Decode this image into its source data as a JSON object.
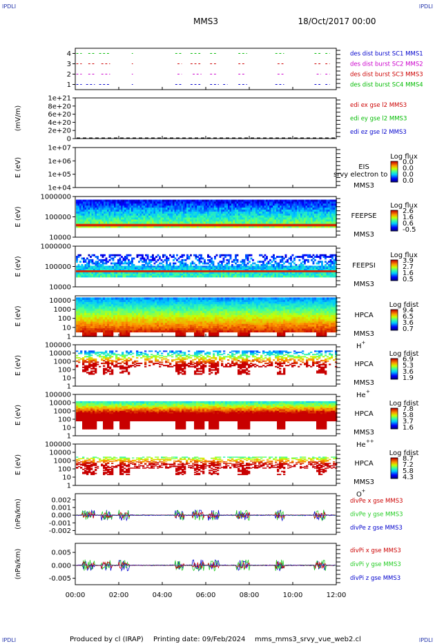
{
  "header": {
    "corner_labels": [
      "IPDLI",
      "IPDLI",
      "IPDLI",
      "IPDLI"
    ],
    "spacecraft": "MMS3",
    "date_time": "18/Oct/2017 00:00"
  },
  "footer": {
    "produced_by": "Produced by cl (IRAP)",
    "printing_date": "Printing date: 09/Feb/2024",
    "script_name": "mms_mms3_srvy_vue_web2.cl"
  },
  "colors": {
    "blue": "#0000cc",
    "magenta": "#cc00cc",
    "red": "#cc0000",
    "green": "#00bb00",
    "lightgreen": "#22cc22"
  },
  "chart_data": [
    {
      "type": "scatter",
      "id": "burst",
      "ylabel": "",
      "yticks": [
        "4",
        "3",
        "2",
        "1"
      ],
      "ylim": [
        0.5,
        4.5
      ],
      "legend": [
        {
          "text": "des dist burst SC1 MMS1",
          "color": "#0000cc"
        },
        {
          "text": "des dist burst SC2 MMS2",
          "color": "#cc00cc"
        },
        {
          "text": "des dist burst SC3 MMS3",
          "color": "#cc0000"
        },
        {
          "text": "des dist burst SC4 MMS4",
          "color": "#00bb00"
        }
      ],
      "series": [
        {
          "name": "des dist burst SC1 MMS1",
          "y": 1,
          "color": "#0000cc",
          "intervals": [
            [
              0.05,
              0.3
            ],
            [
              0.5,
              0.9
            ],
            [
              1.1,
              1.6
            ],
            [
              2.6,
              2.65
            ],
            [
              4.6,
              4.9
            ],
            [
              5.3,
              5.8
            ],
            [
              6.2,
              6.6
            ],
            [
              6.8,
              7.0
            ],
            [
              7.5,
              7.9
            ],
            [
              9.2,
              9.6
            ],
            [
              11.0,
              11.3
            ],
            [
              11.5,
              11.7
            ]
          ]
        },
        {
          "name": "des dist burst SC2 MMS2",
          "y": 2,
          "color": "#cc00cc",
          "intervals": [
            [
              0.05,
              0.3
            ],
            [
              0.6,
              0.9
            ],
            [
              1.2,
              1.6
            ],
            [
              2.6,
              2.65
            ],
            [
              4.7,
              4.9
            ],
            [
              5.4,
              5.8
            ],
            [
              6.2,
              6.5
            ],
            [
              7.5,
              7.8
            ],
            [
              9.3,
              9.6
            ],
            [
              11.1,
              11.3
            ],
            [
              11.5,
              11.7
            ]
          ]
        },
        {
          "name": "des dist burst SC3 MMS3",
          "y": 3,
          "color": "#cc0000",
          "intervals": [
            [
              0.05,
              0.3
            ],
            [
              0.6,
              0.9
            ],
            [
              1.2,
              1.6
            ],
            [
              2.6,
              2.65
            ],
            [
              4.7,
              4.9
            ],
            [
              5.3,
              5.8
            ],
            [
              6.2,
              6.5
            ],
            [
              7.5,
              7.8
            ],
            [
              9.3,
              9.6
            ],
            [
              11.0,
              11.3
            ],
            [
              11.5,
              11.7
            ]
          ]
        },
        {
          "name": "des dist burst SC4 MMS4",
          "y": 4,
          "color": "#00bb00",
          "intervals": [
            [
              0.05,
              0.3
            ],
            [
              0.6,
              0.9
            ],
            [
              1.1,
              1.6
            ],
            [
              2.6,
              2.65
            ],
            [
              4.6,
              4.9
            ],
            [
              5.3,
              5.8
            ],
            [
              6.2,
              6.5
            ],
            [
              7.5,
              7.9
            ],
            [
              9.2,
              9.6
            ],
            [
              11.0,
              11.3
            ],
            [
              11.5,
              11.7
            ]
          ]
        }
      ]
    },
    {
      "type": "line",
      "id": "edi",
      "ylabel": "(mV/m)",
      "yticks": [
        "1e+21",
        "8e+20",
        "6e+20",
        "4e+20",
        "2e+20",
        "0"
      ],
      "ylim": [
        0,
        1e+21
      ],
      "legend": [
        {
          "text": "edi ex gse l2 MMS3",
          "color": "#cc0000"
        },
        {
          "text": "edi ey gse l2 MMS3",
          "color": "#00bb00"
        },
        {
          "text": "edi ez gse l2 MMS3",
          "color": "#0000cc"
        }
      ],
      "series": [
        {
          "name": "edi ez gse l2 MMS3",
          "y": 0,
          "style": "dashed",
          "color": "#000000"
        }
      ]
    },
    {
      "type": "heatmap",
      "id": "eis",
      "ylabel": "E (eV)",
      "yticks": [
        "1e+07",
        "1e+06",
        "1e+05",
        "1e+04"
      ],
      "scale": "log",
      "ylim": [
        10000.0,
        10000000.0
      ],
      "instrument": "EIS",
      "instrument_note": "srvy electron to",
      "spacecraft": "MMS3",
      "colorbar_title": "Log flux",
      "colorbar_ticks": [
        "0.0",
        "0.0",
        "0.0",
        "0.0"
      ]
    },
    {
      "type": "heatmap",
      "id": "feepse",
      "ylabel": "E (eV)",
      "yticks": [
        "1000000",
        "100000",
        "10000"
      ],
      "scale": "log",
      "ylim": [
        10000.0,
        1000000.0
      ],
      "instrument": "FEEPSE",
      "spacecraft": "MMS3",
      "colorbar_title": "Log flux",
      "colorbar_ticks": [
        "2.6",
        "1.6",
        "0.6",
        "-0.5"
      ]
    },
    {
      "type": "heatmap",
      "id": "feepsi",
      "ylabel": "E (eV)",
      "yticks": [
        "1000000",
        "100000",
        "10000"
      ],
      "scale": "log",
      "ylim": [
        10000.0,
        1000000.0
      ],
      "instrument": "FEEPSI",
      "spacecraft": "MMS3",
      "colorbar_title": "Log flux",
      "colorbar_ticks": [
        "3.9",
        "2.7",
        "1.6",
        "0.5"
      ]
    },
    {
      "type": "heatmap",
      "id": "hpca_h",
      "ylabel": "E (eV)",
      "yticks": [
        "10000",
        "1000",
        "100",
        "10",
        "1"
      ],
      "scale": "log",
      "ylim": [
        1,
        30000.0
      ],
      "instrument": "HPCA",
      "spacecraft": "MMS3",
      "species": "H",
      "species_charge": "+",
      "colorbar_title": "Log fdist",
      "colorbar_ticks": [
        "9.4",
        "6.5",
        "3.6",
        "0.7"
      ]
    },
    {
      "type": "heatmap",
      "id": "hpca_he1",
      "ylabel": "E (eV)",
      "yticks": [
        "100000",
        "10000",
        "1000",
        "100",
        "10",
        "1"
      ],
      "scale": "log",
      "ylim": [
        1,
        100000.0
      ],
      "instrument": "HPCA",
      "spacecraft": "MMS3",
      "species": "He",
      "species_charge": "+",
      "colorbar_title": "Log fdist",
      "colorbar_ticks": [
        "6.9",
        "5.3",
        "3.6",
        "1.9"
      ]
    },
    {
      "type": "heatmap",
      "id": "hpca_he2",
      "ylabel": "E (eV)",
      "yticks": [
        "100000",
        "10000",
        "1000",
        "100",
        "10",
        "1"
      ],
      "scale": "log",
      "ylim": [
        1,
        100000.0
      ],
      "instrument": "HPCA",
      "spacecraft": "MMS3",
      "species": "He",
      "species_charge": "++",
      "colorbar_title": "Log fdist",
      "colorbar_ticks": [
        "7.8",
        "5.8",
        "3.7",
        "1.6"
      ]
    },
    {
      "type": "heatmap",
      "id": "hpca_o",
      "ylabel": "E (eV)",
      "yticks": [
        "100000",
        "10000",
        "1000",
        "100",
        "10",
        "1"
      ],
      "scale": "log",
      "ylim": [
        1,
        100000.0
      ],
      "instrument": "HPCA",
      "spacecraft": "MMS3",
      "species": "O",
      "species_charge": "+",
      "colorbar_title": "Log fdist",
      "colorbar_ticks": [
        "8.7",
        "7.2",
        "5.8",
        "4.3"
      ]
    },
    {
      "type": "line",
      "id": "divpe",
      "ylabel": "(nPa/km)",
      "yticks": [
        "0.002",
        "0.001",
        "0.000",
        "-0.001",
        "-0.002"
      ],
      "ylim": [
        -0.0025,
        0.0028
      ],
      "legend": [
        {
          "text": "divPe x gse MMS3",
          "color": "#cc0000"
        },
        {
          "text": "divPe y gse MMS3",
          "color": "#22cc22"
        },
        {
          "text": "divPe z gse MMS3",
          "color": "#0000cc"
        }
      ],
      "amplitude": 0.0007
    },
    {
      "type": "line",
      "id": "divpi",
      "ylabel": "(nPa/km)",
      "yticks": [
        "0.005",
        "0.000",
        "-0.005"
      ],
      "ylim": [
        -0.0075,
        0.0085
      ],
      "legend": [
        {
          "text": "divPi x gse MMS3",
          "color": "#cc0000"
        },
        {
          "text": "divPi y gse MMS3",
          "color": "#22cc22"
        },
        {
          "text": "divPi z gse MMS3",
          "color": "#0000cc"
        }
      ],
      "amplitude": 0.0022
    }
  ],
  "time_axis": {
    "xlim": [
      0,
      12
    ],
    "tick_labels": [
      "00:00",
      "02:00",
      "04:00",
      "06:00",
      "08:00",
      "10:00",
      "12:00"
    ],
    "tick_hours": [
      0,
      2,
      4,
      6,
      8,
      10,
      12
    ]
  },
  "activity_intervals": [
    [
      0.3,
      0.9
    ],
    [
      1.2,
      1.7
    ],
    [
      2.0,
      2.5
    ],
    [
      4.6,
      5.0
    ],
    [
      5.4,
      5.9
    ],
    [
      6.1,
      6.6
    ],
    [
      7.4,
      8.0
    ],
    [
      9.2,
      9.6
    ],
    [
      11.0,
      11.5
    ]
  ]
}
